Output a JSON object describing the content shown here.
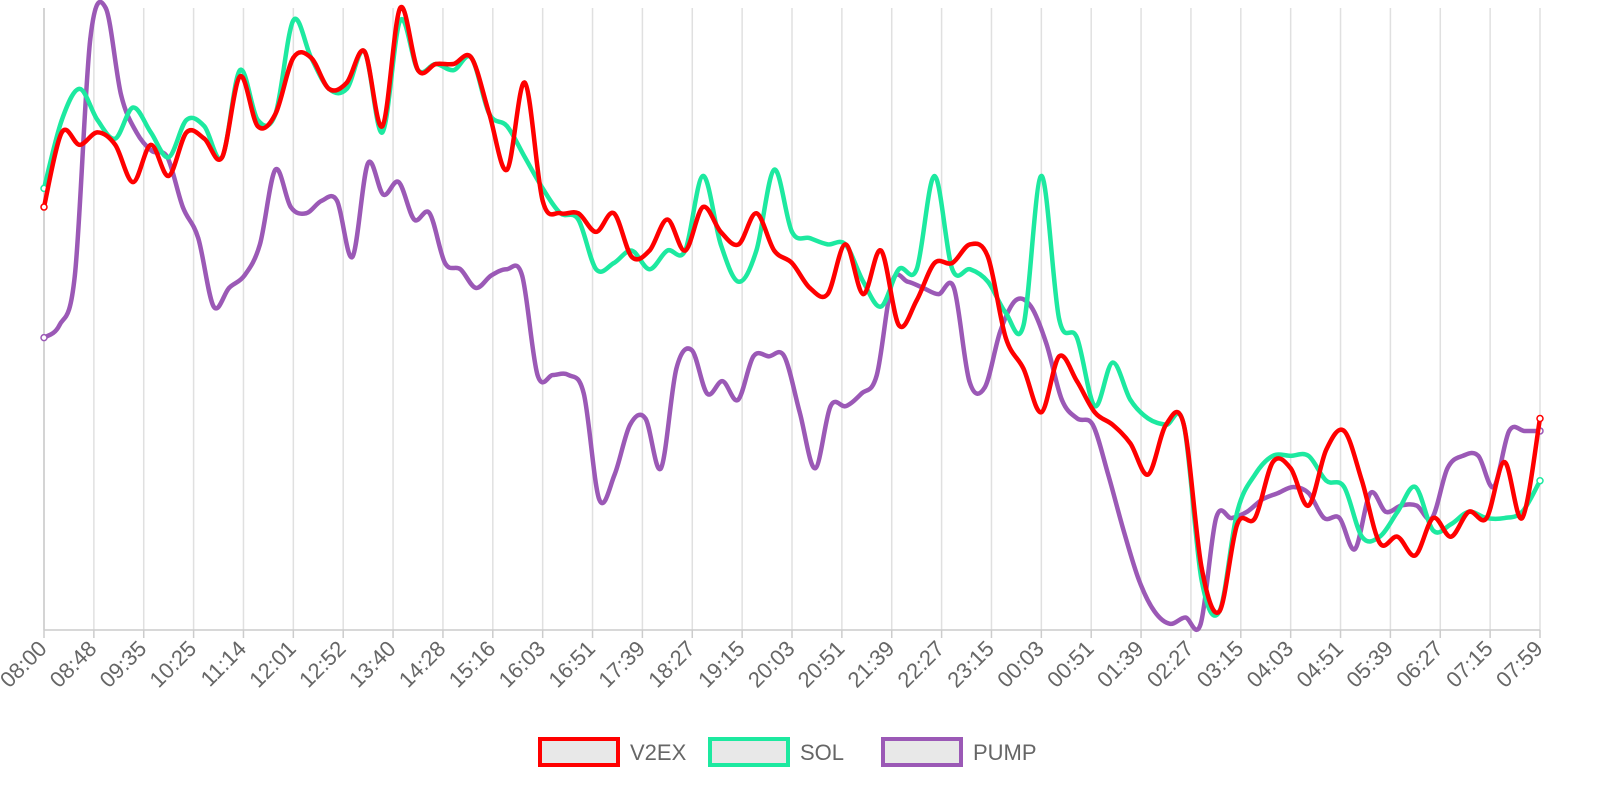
{
  "chart_data": {
    "type": "line",
    "title": "",
    "xlabel": "",
    "ylabel": "",
    "x_ticks": [
      "08:00",
      "08:48",
      "09:35",
      "10:25",
      "11:14",
      "12:01",
      "12:52",
      "13:40",
      "14:28",
      "15:16",
      "16:03",
      "16:51",
      "17:39",
      "18:27",
      "19:15",
      "20:03",
      "20:51",
      "21:39",
      "22:27",
      "23:15",
      "00:03",
      "00:51",
      "01:39",
      "02:27",
      "03:15",
      "04:03",
      "04:51",
      "05:39",
      "06:27",
      "07:15",
      "07:59"
    ],
    "ylim": [
      0,
      100
    ],
    "grid": {
      "vertical": true,
      "horizontal": false
    },
    "y_axis_labels_shown": false,
    "legend_position": "bottom",
    "series": [
      {
        "name": "V2EX",
        "color": "#ff0000",
        "values": [
          68,
          80,
          78,
          80,
          78,
          72,
          78,
          73,
          80,
          79,
          76,
          89,
          81,
          83,
          92,
          92,
          87,
          88,
          93,
          81,
          100,
          90,
          91,
          91,
          92,
          83,
          74,
          88,
          69,
          67,
          67,
          64,
          67,
          60,
          61,
          66,
          61,
          68,
          64,
          62,
          67,
          61,
          59,
          55,
          54,
          62,
          54,
          61,
          49,
          53,
          59,
          59,
          62,
          60,
          47,
          42,
          35,
          44,
          40,
          35,
          33,
          30,
          25,
          33,
          33,
          10,
          3,
          17,
          18,
          27,
          26,
          20,
          29,
          32,
          24,
          14,
          15,
          12,
          18,
          15,
          19,
          18,
          27,
          18,
          34
        ]
      },
      {
        "name": "SOL",
        "color": "#1de9a0",
        "values": [
          71,
          82,
          87,
          82,
          79,
          84,
          80,
          76,
          82,
          81,
          76,
          90,
          82,
          83,
          98,
          92,
          87,
          87,
          93,
          80,
          98,
          90,
          91,
          90,
          92,
          83,
          81,
          76,
          71,
          67,
          66,
          58,
          59,
          61,
          58,
          61,
          61,
          73,
          62,
          56,
          61,
          74,
          64,
          63,
          62,
          62,
          56,
          52,
          58,
          58,
          73,
          58,
          58,
          56,
          51,
          49,
          73,
          50,
          47,
          36,
          43,
          37,
          34,
          33,
          33,
          8,
          3,
          19,
          25,
          28,
          28,
          28,
          24,
          23,
          15,
          15,
          19,
          23,
          16,
          17,
          19,
          18,
          18,
          19,
          24
        ]
      },
      {
        "name": "PUMP",
        "color": "#9b59b6",
        "values": [
          47,
          49,
          57,
          95,
          100,
          86,
          80,
          77,
          76,
          68,
          63,
          52,
          55,
          57,
          62,
          74,
          68,
          67,
          69,
          69,
          60,
          75,
          70,
          72,
          66,
          67,
          59,
          58,
          55,
          57,
          58,
          57,
          41,
          41,
          41,
          38,
          21,
          25,
          33,
          34,
          26,
          42,
          45,
          38,
          40,
          37,
          44,
          44,
          44,
          35,
          26,
          36,
          36,
          38,
          41,
          56,
          56,
          55,
          54,
          55,
          40,
          39,
          48,
          53,
          52,
          46,
          37,
          34,
          33,
          25,
          16,
          8,
          3,
          1,
          2,
          1,
          18,
          18,
          19,
          21,
          22,
          23,
          22,
          18,
          18,
          13,
          22,
          19,
          20,
          20,
          18,
          26,
          28,
          28,
          23,
          32,
          32,
          32
        ]
      }
    ]
  }
}
